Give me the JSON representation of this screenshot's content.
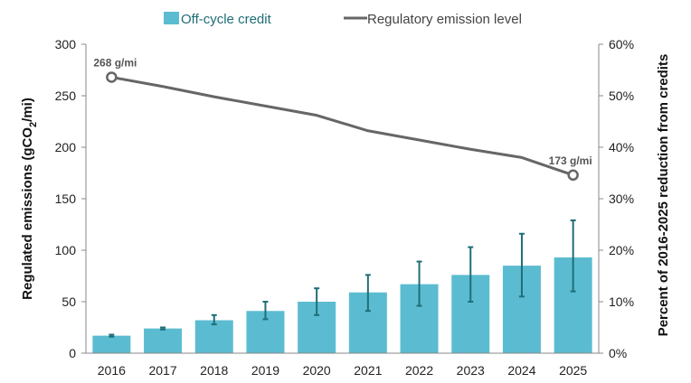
{
  "chart_data": {
    "type": "bar",
    "categories": [
      "2016",
      "2017",
      "2018",
      "2019",
      "2020",
      "2021",
      "2022",
      "2023",
      "2024",
      "2025"
    ],
    "series": [
      {
        "name": "Off-cycle credit",
        "type": "bar",
        "axis": "left",
        "color": "#5bbcd1",
        "values": [
          17,
          24,
          32,
          41,
          50,
          59,
          67,
          76,
          85,
          93
        ],
        "error_low": [
          16,
          23,
          28,
          33,
          37,
          41,
          46,
          50,
          55,
          60
        ],
        "error_high": [
          18,
          25,
          37,
          50,
          63,
          76,
          89,
          103,
          116,
          129
        ],
        "error_color": "#1f6e78"
      },
      {
        "name": "Regulatory emission level",
        "type": "line",
        "axis": "left",
        "color": "#666666",
        "values": [
          268,
          259,
          249,
          240,
          231,
          216,
          207,
          198,
          190,
          173
        ]
      }
    ],
    "point_labels": [
      {
        "index": 0,
        "text": "268 g/mi"
      },
      {
        "index": 9,
        "text": "173 g/mi"
      }
    ],
    "ylabel_parts": [
      "Regulated emissions (gCO",
      "2",
      "/mi)"
    ],
    "ylabel_right": "Percent of 2016-2025 reduction from credits",
    "ylim": [
      0,
      300
    ],
    "yticks": [
      "0",
      "50",
      "100",
      "150",
      "200",
      "250",
      "300"
    ],
    "ylim_right": [
      0,
      60
    ],
    "yticks_right": [
      "0%",
      "10%",
      "20%",
      "30%",
      "40%",
      "50%",
      "60%"
    ],
    "legend_position": "top",
    "grid": false
  }
}
